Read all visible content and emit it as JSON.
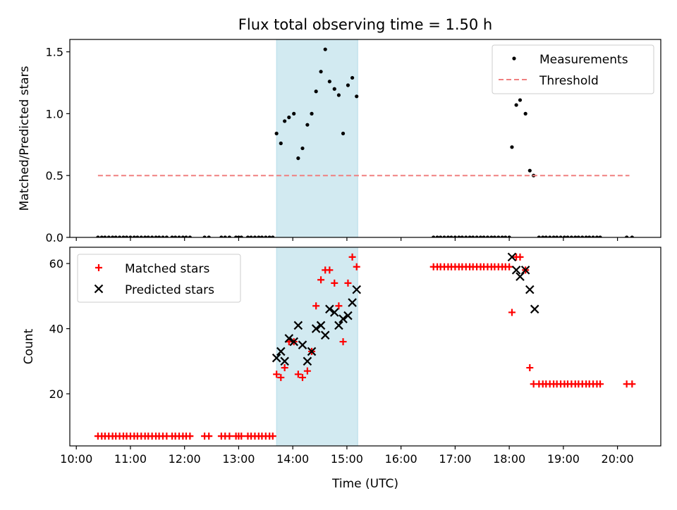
{
  "title": "Flux total observing time = 1.50 h",
  "chart_data": [
    {
      "type": "scatter",
      "ylabel": "Matched/Predicted stars",
      "xlabel": "",
      "x_unit": "hours (UTC)",
      "xlim": [
        9.88,
        20.8
      ],
      "ylim": [
        0,
        1.6
      ],
      "yticks": [
        0.0,
        0.5,
        1.0,
        1.5
      ],
      "ytick_labels": [
        "0.0",
        "0.5",
        "1.0",
        "1.5"
      ],
      "shaded_interval": [
        13.7,
        15.2
      ],
      "shade_color": "#add8e6",
      "grid": false,
      "legend": {
        "location": "top-right",
        "entries": [
          "Measurements",
          "Threshold"
        ]
      },
      "series": [
        {
          "name": "Measurements",
          "marker": "dot",
          "color": "#000000",
          "points": [
            [
              10.4,
              0
            ],
            [
              10.47,
              0
            ],
            [
              10.53,
              0
            ],
            [
              10.6,
              0
            ],
            [
              10.67,
              0
            ],
            [
              10.73,
              0
            ],
            [
              10.8,
              0
            ],
            [
              10.87,
              0
            ],
            [
              10.93,
              0
            ],
            [
              11.0,
              0
            ],
            [
              11.07,
              0
            ],
            [
              11.13,
              0
            ],
            [
              11.2,
              0
            ],
            [
              11.27,
              0
            ],
            [
              11.33,
              0
            ],
            [
              11.4,
              0
            ],
            [
              11.47,
              0
            ],
            [
              11.53,
              0
            ],
            [
              11.6,
              0
            ],
            [
              11.67,
              0
            ],
            [
              11.77,
              0
            ],
            [
              11.83,
              0
            ],
            [
              11.9,
              0
            ],
            [
              11.97,
              0
            ],
            [
              12.03,
              0
            ],
            [
              12.1,
              0
            ],
            [
              12.37,
              0
            ],
            [
              12.45,
              0
            ],
            [
              12.68,
              0
            ],
            [
              12.75,
              0
            ],
            [
              12.83,
              0
            ],
            [
              12.95,
              0
            ],
            [
              13.0,
              0
            ],
            [
              13.05,
              0
            ],
            [
              13.17,
              0
            ],
            [
              13.23,
              0
            ],
            [
              13.3,
              0
            ],
            [
              13.37,
              0
            ],
            [
              13.43,
              0
            ],
            [
              13.5,
              0
            ],
            [
              13.57,
              0
            ],
            [
              13.63,
              0
            ],
            [
              13.7,
              0.84
            ],
            [
              13.78,
              0.76
            ],
            [
              13.85,
              0.94
            ],
            [
              13.93,
              0.97
            ],
            [
              14.02,
              1.0
            ],
            [
              14.1,
              0.64
            ],
            [
              14.18,
              0.72
            ],
            [
              14.27,
              0.91
            ],
            [
              14.35,
              1.0
            ],
            [
              14.43,
              1.18
            ],
            [
              14.52,
              1.34
            ],
            [
              14.6,
              1.52
            ],
            [
              14.68,
              1.26
            ],
            [
              14.77,
              1.2
            ],
            [
              14.85,
              1.15
            ],
            [
              14.93,
              0.84
            ],
            [
              15.02,
              1.23
            ],
            [
              15.1,
              1.29
            ],
            [
              15.18,
              1.14
            ],
            [
              16.6,
              0
            ],
            [
              16.67,
              0
            ],
            [
              16.73,
              0
            ],
            [
              16.8,
              0
            ],
            [
              16.87,
              0
            ],
            [
              16.93,
              0
            ],
            [
              17.0,
              0
            ],
            [
              17.07,
              0
            ],
            [
              17.13,
              0
            ],
            [
              17.2,
              0
            ],
            [
              17.27,
              0
            ],
            [
              17.33,
              0
            ],
            [
              17.4,
              0
            ],
            [
              17.47,
              0
            ],
            [
              17.53,
              0
            ],
            [
              17.6,
              0
            ],
            [
              17.67,
              0
            ],
            [
              17.73,
              0
            ],
            [
              17.8,
              0
            ],
            [
              17.87,
              0
            ],
            [
              17.93,
              0
            ],
            [
              18.0,
              0
            ],
            [
              18.05,
              0.73
            ],
            [
              18.13,
              1.07
            ],
            [
              18.2,
              1.11
            ],
            [
              18.3,
              1.0
            ],
            [
              18.38,
              0.54
            ],
            [
              18.45,
              0.5
            ],
            [
              18.55,
              0
            ],
            [
              18.62,
              0
            ],
            [
              18.68,
              0
            ],
            [
              18.75,
              0
            ],
            [
              18.82,
              0
            ],
            [
              18.88,
              0
            ],
            [
              18.95,
              0
            ],
            [
              19.02,
              0
            ],
            [
              19.08,
              0
            ],
            [
              19.15,
              0
            ],
            [
              19.22,
              0
            ],
            [
              19.28,
              0
            ],
            [
              19.35,
              0
            ],
            [
              19.42,
              0
            ],
            [
              19.48,
              0
            ],
            [
              19.55,
              0
            ],
            [
              19.62,
              0
            ],
            [
              19.68,
              0
            ],
            [
              20.17,
              0
            ],
            [
              20.27,
              0
            ]
          ]
        },
        {
          "name": "Threshold",
          "style": "dashed",
          "color": "#f08080",
          "points": [
            [
              10.4,
              0.5
            ],
            [
              20.22,
              0.5
            ]
          ]
        }
      ]
    },
    {
      "type": "scatter",
      "ylabel": "Count",
      "xlabel": "Time (UTC)",
      "x_unit": "hours (UTC)",
      "xlim": [
        9.88,
        20.8
      ],
      "ylim": [
        4,
        65
      ],
      "yticks": [
        20,
        40,
        60
      ],
      "ytick_labels": [
        "20",
        "40",
        "60"
      ],
      "xticks": [
        10,
        11,
        12,
        13,
        14,
        15,
        16,
        17,
        18,
        19,
        20
      ],
      "xtick_labels": [
        "10:00",
        "11:00",
        "12:00",
        "13:00",
        "14:00",
        "15:00",
        "16:00",
        "17:00",
        "18:00",
        "19:00",
        "20:00"
      ],
      "shaded_interval": [
        13.7,
        15.2
      ],
      "shade_color": "#add8e6",
      "grid": false,
      "legend": {
        "location": "top-left",
        "entries": [
          "Matched stars",
          "Predicted stars"
        ]
      },
      "series": [
        {
          "name": "Matched stars",
          "marker": "plus",
          "color": "#ff0000",
          "points": [
            [
              10.4,
              7
            ],
            [
              10.47,
              7
            ],
            [
              10.53,
              7
            ],
            [
              10.6,
              7
            ],
            [
              10.67,
              7
            ],
            [
              10.73,
              7
            ],
            [
              10.8,
              7
            ],
            [
              10.87,
              7
            ],
            [
              10.93,
              7
            ],
            [
              11.0,
              7
            ],
            [
              11.07,
              7
            ],
            [
              11.13,
              7
            ],
            [
              11.2,
              7
            ],
            [
              11.27,
              7
            ],
            [
              11.33,
              7
            ],
            [
              11.4,
              7
            ],
            [
              11.47,
              7
            ],
            [
              11.53,
              7
            ],
            [
              11.6,
              7
            ],
            [
              11.67,
              7
            ],
            [
              11.77,
              7
            ],
            [
              11.83,
              7
            ],
            [
              11.9,
              7
            ],
            [
              11.97,
              7
            ],
            [
              12.03,
              7
            ],
            [
              12.1,
              7
            ],
            [
              12.37,
              7
            ],
            [
              12.45,
              7
            ],
            [
              12.68,
              7
            ],
            [
              12.75,
              7
            ],
            [
              12.83,
              7
            ],
            [
              12.95,
              7
            ],
            [
              13.0,
              7
            ],
            [
              13.05,
              7
            ],
            [
              13.17,
              7
            ],
            [
              13.23,
              7
            ],
            [
              13.3,
              7
            ],
            [
              13.37,
              7
            ],
            [
              13.43,
              7
            ],
            [
              13.5,
              7
            ],
            [
              13.57,
              7
            ],
            [
              13.63,
              7
            ],
            [
              13.7,
              26
            ],
            [
              13.78,
              25
            ],
            [
              13.85,
              28
            ],
            [
              13.93,
              36
            ],
            [
              14.02,
              36
            ],
            [
              14.1,
              26
            ],
            [
              14.18,
              25
            ],
            [
              14.27,
              27
            ],
            [
              14.35,
              33
            ],
            [
              14.43,
              47
            ],
            [
              14.52,
              55
            ],
            [
              14.6,
              58
            ],
            [
              14.68,
              58
            ],
            [
              14.77,
              54
            ],
            [
              14.85,
              47
            ],
            [
              14.93,
              36
            ],
            [
              15.02,
              54
            ],
            [
              15.1,
              62
            ],
            [
              15.18,
              59
            ],
            [
              16.6,
              59
            ],
            [
              16.67,
              59
            ],
            [
              16.73,
              59
            ],
            [
              16.8,
              59
            ],
            [
              16.87,
              59
            ],
            [
              16.93,
              59
            ],
            [
              17.0,
              59
            ],
            [
              17.07,
              59
            ],
            [
              17.13,
              59
            ],
            [
              17.2,
              59
            ],
            [
              17.27,
              59
            ],
            [
              17.33,
              59
            ],
            [
              17.4,
              59
            ],
            [
              17.47,
              59
            ],
            [
              17.53,
              59
            ],
            [
              17.6,
              59
            ],
            [
              17.67,
              59
            ],
            [
              17.73,
              59
            ],
            [
              17.8,
              59
            ],
            [
              17.87,
              59
            ],
            [
              17.93,
              59
            ],
            [
              18.0,
              59
            ],
            [
              18.05,
              45
            ],
            [
              18.13,
              62
            ],
            [
              18.2,
              62
            ],
            [
              18.3,
              58
            ],
            [
              18.38,
              28
            ],
            [
              18.45,
              23
            ],
            [
              18.55,
              23
            ],
            [
              18.62,
              23
            ],
            [
              18.68,
              23
            ],
            [
              18.75,
              23
            ],
            [
              18.82,
              23
            ],
            [
              18.88,
              23
            ],
            [
              18.95,
              23
            ],
            [
              19.02,
              23
            ],
            [
              19.08,
              23
            ],
            [
              19.15,
              23
            ],
            [
              19.22,
              23
            ],
            [
              19.28,
              23
            ],
            [
              19.35,
              23
            ],
            [
              19.42,
              23
            ],
            [
              19.48,
              23
            ],
            [
              19.55,
              23
            ],
            [
              19.62,
              23
            ],
            [
              19.68,
              23
            ],
            [
              20.17,
              23
            ],
            [
              20.27,
              23
            ]
          ]
        },
        {
          "name": "Predicted stars",
          "marker": "x",
          "color": "#000000",
          "points": [
            [
              13.7,
              31
            ],
            [
              13.78,
              33
            ],
            [
              13.85,
              30
            ],
            [
              13.93,
              37
            ],
            [
              14.02,
              36
            ],
            [
              14.1,
              41
            ],
            [
              14.18,
              35
            ],
            [
              14.27,
              30
            ],
            [
              14.35,
              33
            ],
            [
              14.43,
              40
            ],
            [
              14.52,
              41
            ],
            [
              14.6,
              38
            ],
            [
              14.68,
              46
            ],
            [
              14.77,
              45
            ],
            [
              14.85,
              41
            ],
            [
              14.93,
              43
            ],
            [
              15.02,
              44
            ],
            [
              15.1,
              48
            ],
            [
              15.18,
              52
            ],
            [
              18.05,
              62
            ],
            [
              18.13,
              58
            ],
            [
              18.2,
              56
            ],
            [
              18.3,
              58
            ],
            [
              18.38,
              52
            ],
            [
              18.47,
              46
            ]
          ]
        }
      ]
    }
  ]
}
